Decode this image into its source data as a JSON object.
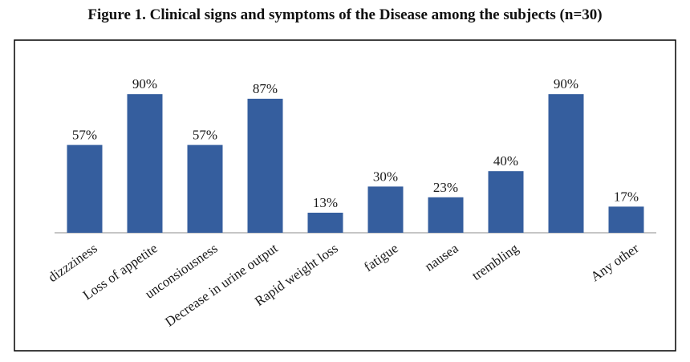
{
  "figure": {
    "title": "Figure 1. Clinical signs and symptoms of the Disease among the subjects (n=30)"
  },
  "chart_data": {
    "type": "bar",
    "title": "",
    "xlabel": "",
    "ylabel": "",
    "ylim": [
      0,
      100
    ],
    "grid": false,
    "legend": "none",
    "bar_color": "#355E9E",
    "categories": [
      "dizzziness",
      "Loss of appetite",
      "unconsiousness",
      "Decrease in urine output",
      "Rapid weight loss",
      "fatigue",
      "nausea",
      "trembling",
      "",
      "Any other"
    ],
    "values": [
      57,
      90,
      57,
      87,
      13,
      30,
      23,
      40,
      90,
      17
    ],
    "data_labels": [
      "57%",
      "90%",
      "57%",
      "87%",
      "13%",
      "30%",
      "23%",
      "40%",
      "90%",
      "17%"
    ]
  }
}
